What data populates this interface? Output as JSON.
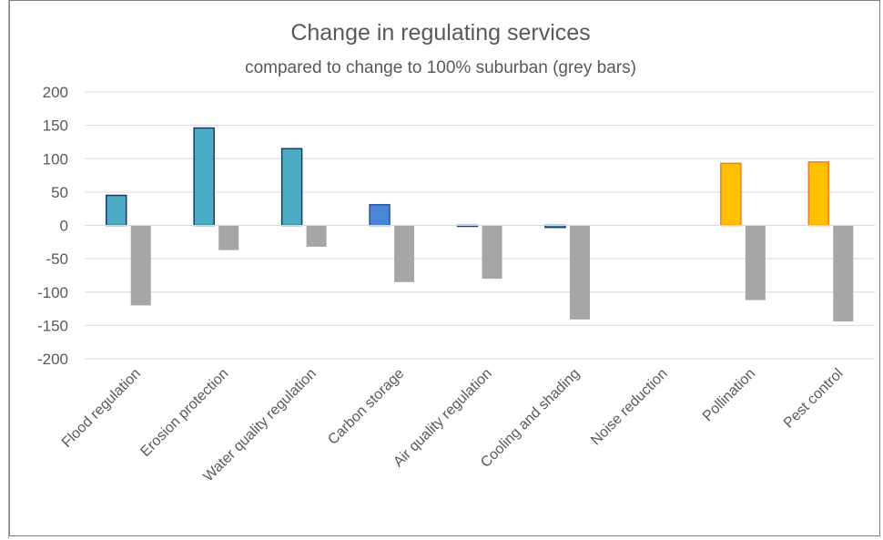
{
  "chart_data": {
    "type": "bar",
    "title": "Change in regulating services",
    "subtitle": "compared to change to 100% suburban (grey bars)",
    "categories": [
      "Flood regulation",
      "Erosion protection",
      "Water quality regulation",
      "Carbon storage",
      "Air quality regulation",
      "Cooling and shading",
      "Noise reduction",
      "Pollination",
      "Pest control"
    ],
    "series": [
      {
        "values": [
          45,
          146,
          115,
          31,
          -1,
          -3,
          0,
          93,
          95
        ],
        "fill_colors": [
          "#4bacc6",
          "#4bacc6",
          "#4bacc6",
          "#4a86d6",
          "#4bacc6",
          "#4bacc6",
          "#4bacc6",
          "#ffc000",
          "#ffc000"
        ],
        "stroke_colors": [
          "#1f3864",
          "#1f3864",
          "#1f3864",
          "#2f5597",
          "#1f3864",
          "#1f3864",
          "#1f3864",
          "#ed7d31",
          "#ed7d31"
        ]
      },
      {
        "values": [
          -120,
          -37,
          -32,
          -85,
          -80,
          -141,
          0,
          -112,
          -144
        ],
        "fill_color": "#a6a6a6"
      }
    ],
    "yticks": [
      "200",
      "150",
      "100",
      "50",
      "0",
      "-50",
      "-100",
      "-150",
      "-200"
    ],
    "ylim": [
      -200,
      200
    ],
    "xlabel": "",
    "ylabel": "",
    "grid": true,
    "legend": "none"
  }
}
